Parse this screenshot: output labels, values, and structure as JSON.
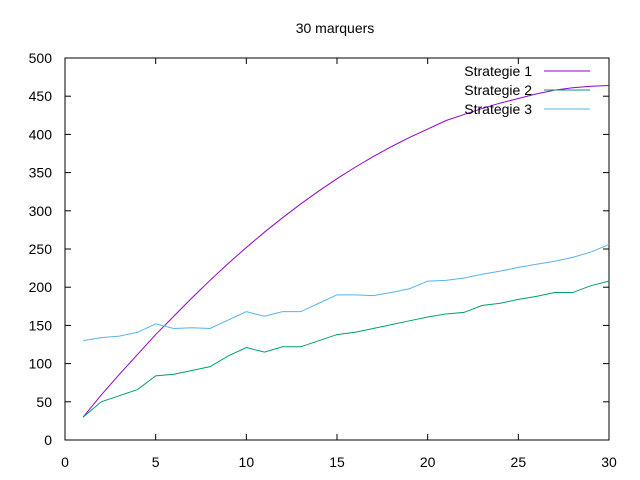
{
  "chart_data": {
    "type": "line",
    "title": "30 marquers",
    "xlabel": "",
    "ylabel": "",
    "xlim": [
      0,
      30
    ],
    "ylim": [
      0,
      500
    ],
    "x_ticks": [
      "0",
      "5",
      "10",
      "15",
      "20",
      "25",
      "30"
    ],
    "y_ticks": [
      "0",
      "50",
      "100",
      "150",
      "200",
      "250",
      "300",
      "350",
      "400",
      "450",
      "500"
    ],
    "grid": false,
    "legend_position": "top-right",
    "x": [
      1,
      2,
      3,
      4,
      5,
      6,
      7,
      8,
      9,
      10,
      11,
      12,
      13,
      14,
      15,
      16,
      17,
      18,
      19,
      20,
      21,
      22,
      23,
      24,
      25,
      26,
      27,
      28,
      29,
      30
    ],
    "series": [
      {
        "name": "Strategie 1",
        "color": "#9400d3",
        "values": [
          30,
          59,
          86,
          112,
          138,
          162,
          186,
          209,
          231,
          252,
          272,
          291,
          309,
          326,
          342,
          357,
          371,
          384,
          396,
          407,
          418,
          426,
          434,
          441,
          447,
          453,
          458,
          461,
          463,
          464
        ]
      },
      {
        "name": "Strategie 2",
        "color": "#009e73",
        "values": [
          30,
          50,
          58,
          66,
          84,
          86,
          91,
          96,
          110,
          121,
          115,
          122,
          122,
          130,
          138,
          141,
          146,
          151,
          156,
          161,
          165,
          167,
          176,
          179,
          184,
          188,
          193,
          193,
          202,
          208
        ]
      },
      {
        "name": "Strategie 3",
        "color": "#56b4e9",
        "values": [
          130,
          134,
          136,
          141,
          152,
          146,
          147,
          146,
          157,
          168,
          162,
          168,
          168,
          179,
          190,
          190,
          189,
          193,
          198,
          208,
          209,
          212,
          217,
          221,
          226,
          230,
          234,
          239,
          246,
          256
        ]
      }
    ]
  }
}
